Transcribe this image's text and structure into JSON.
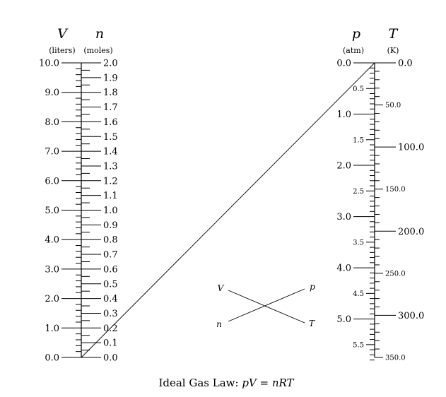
{
  "scales": {
    "V": {
      "symbol": "V",
      "unit": "(liters)",
      "min": 0.0,
      "max": 10.0,
      "label_step": 1.0,
      "minor_step": 0.2
    },
    "n": {
      "symbol": "n",
      "unit": "(moles)",
      "min": 0.0,
      "max": 2.0,
      "label_step": 0.1,
      "minor_step": 0.05
    },
    "p": {
      "symbol": "p",
      "unit": "(atm)",
      "min": 0.0,
      "max": 5.75,
      "major_step": 1.0,
      "mid_step": 0.5,
      "minor_step": 0.1
    },
    "T": {
      "symbol": "T",
      "unit": "(K)",
      "min": 0.0,
      "max": 350.0,
      "major_step": 50.0,
      "minor_step": 10.0
    }
  },
  "labels": {
    "V": [
      "0.0",
      "1.0",
      "2.0",
      "3.0",
      "4.0",
      "5.0",
      "6.0",
      "7.0",
      "8.0",
      "9.0",
      "10.0"
    ],
    "n": [
      "0.0",
      "0.1",
      "0.2",
      "0.3",
      "0.4",
      "0.5",
      "0.6",
      "0.7",
      "0.8",
      "0.9",
      "1.0",
      "1.1",
      "1.2",
      "1.3",
      "1.4",
      "1.5",
      "1.6",
      "1.7",
      "1.8",
      "1.9",
      "2.0"
    ],
    "p_major": [
      "0.0",
      "1.0",
      "2.0",
      "3.0",
      "4.0",
      "5.0"
    ],
    "p_mid": [
      "0.5",
      "1.5",
      "2.5",
      "3.5",
      "4.5",
      "5.5"
    ],
    "T_big": [
      "0.0",
      "100.0",
      "200.0",
      "300.0"
    ],
    "T_small": [
      "50.0",
      "150.0",
      "250.0",
      "350.0"
    ]
  },
  "key": {
    "top_left": "V",
    "top_right": "p",
    "bottom_left": "n",
    "bottom_right": "T"
  },
  "isopleth": {
    "from": {
      "scale": "V",
      "value": 0.0
    },
    "to": {
      "scale": "p",
      "value": 0.0
    }
  },
  "caption": {
    "text": "Ideal Gas Law: ",
    "formula": "pV = nRT"
  }
}
